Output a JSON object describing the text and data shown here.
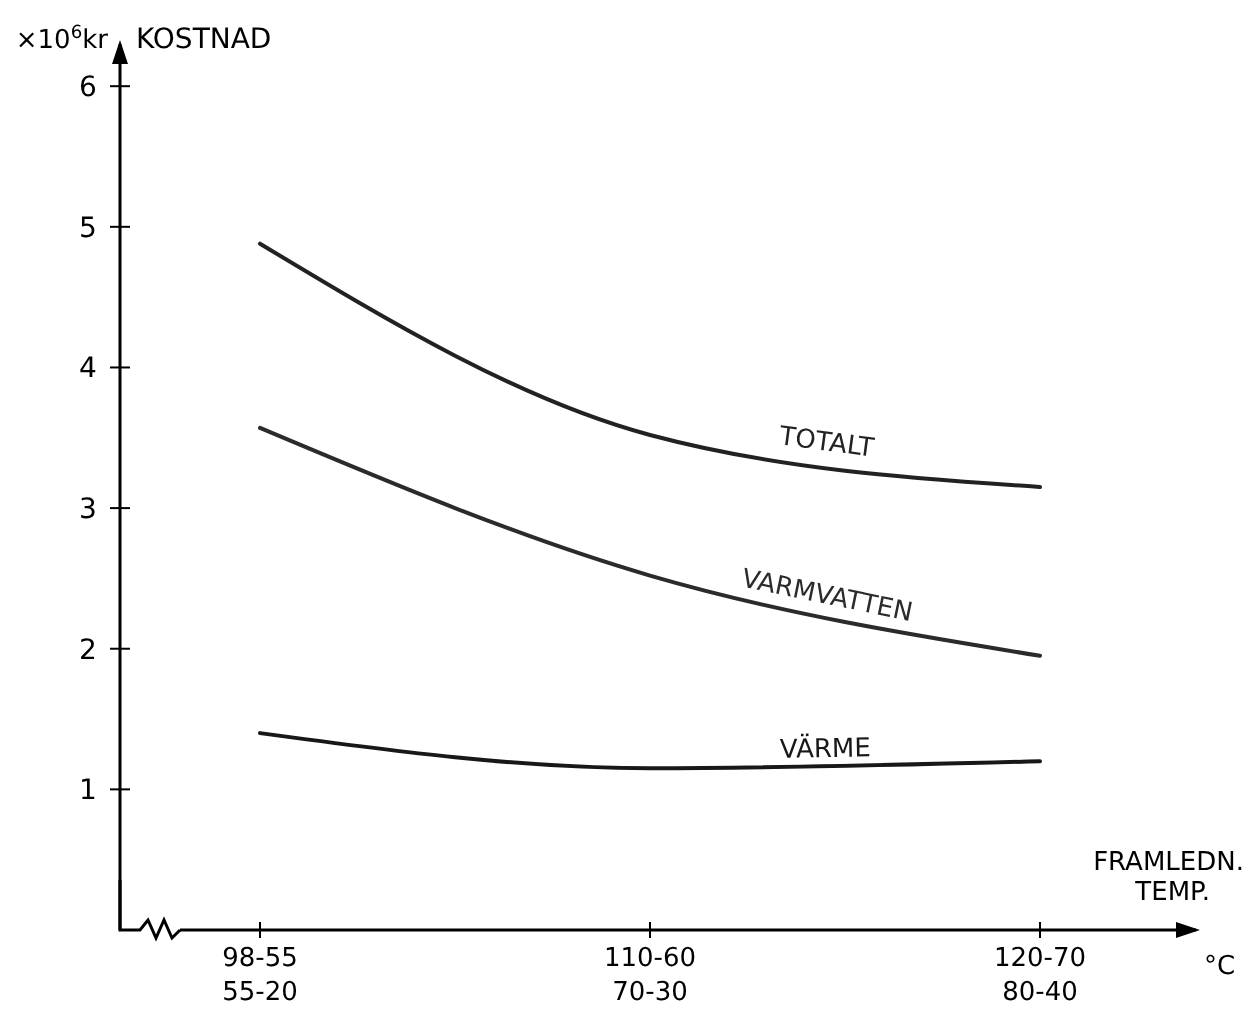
{
  "chart_data": {
    "type": "line",
    "ylabel": "KOSTNAD",
    "xlabel": "FRAMLEDN. TEMP.",
    "annotations": [
      "×10$^{6}$kr",
      "°C"
    ],
    "categories": [
      "98-55\n55-20",
      "110-60\n70-30",
      "120-70\n80-40"
    ],
    "series": [
      {
        "name": "TOTALT",
        "color": "#222222",
        "values": [
          4.88,
          3.52,
          3.15
        ]
      },
      {
        "name": "VARMVATTEN",
        "color": "#2b2b2b",
        "values": [
          3.57,
          2.52,
          1.95
        ]
      },
      {
        "name": "VÄRME",
        "color": "#181818",
        "values": [
          1.4,
          1.15,
          1.2
        ]
      }
    ],
    "ylim": [
      0,
      6.3
    ],
    "yticks": [
      1,
      2,
      3,
      4,
      5,
      6
    ],
    "grid": false,
    "legend": false,
    "marker": "none",
    "line_style": "solid"
  }
}
